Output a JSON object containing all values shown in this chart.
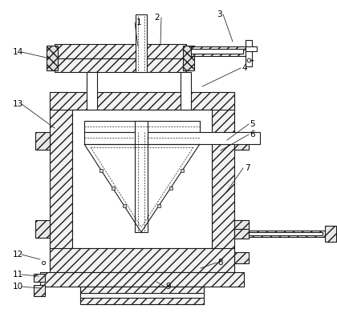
{
  "bg_color": "#ffffff",
  "lc": "#1a1a1a",
  "lw": 0.8,
  "thin": 0.5,
  "labels": {
    "1": [
      173,
      28,
      172,
      58
    ],
    "2": [
      196,
      22,
      200,
      55
    ],
    "3": [
      273,
      18,
      290,
      52
    ],
    "4": [
      305,
      85,
      252,
      108
    ],
    "5": [
      315,
      155,
      283,
      175
    ],
    "6": [
      315,
      168,
      275,
      188
    ],
    "7": [
      308,
      210,
      282,
      240
    ],
    "8": [
      275,
      328,
      250,
      335
    ],
    "9": [
      210,
      358,
      195,
      352
    ],
    "10": [
      22,
      358,
      50,
      360
    ],
    "11": [
      22,
      343,
      48,
      345
    ],
    "12": [
      22,
      318,
      50,
      324
    ],
    "13": [
      22,
      130,
      68,
      160
    ],
    "14": [
      22,
      65,
      62,
      73
    ]
  }
}
